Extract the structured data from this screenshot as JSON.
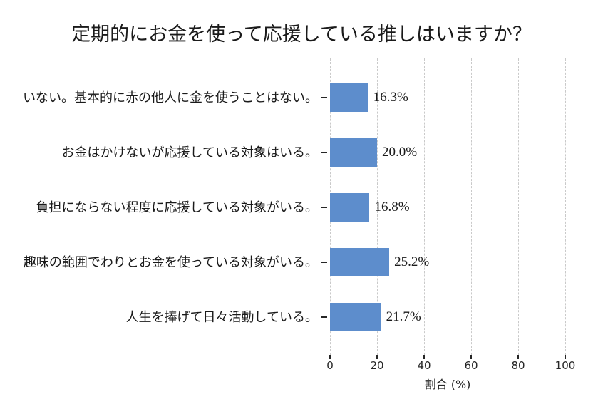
{
  "chart_data": {
    "type": "bar",
    "orientation": "horizontal",
    "title": "定期的にお金を使って応援している推しはいますか？",
    "categories": [
      "いない。基本的に赤の他人に金を使うことはない。",
      "お金はかけないが応援している対象はいる。",
      "負担にならない程度に応援している対象がいる。",
      "趣味の範囲でわりとお金を使っている対象がいる。",
      "人生を捧げて日々活動している。"
    ],
    "values": [
      16.3,
      20.0,
      16.8,
      25.2,
      21.7
    ],
    "value_labels": [
      "16.3%",
      "20.0%",
      "16.8%",
      "25.2%",
      "21.7%"
    ],
    "xlabel": "割合 (%)",
    "ylabel": "",
    "xlim": [
      0,
      100
    ],
    "xticks": [
      0,
      20,
      40,
      60,
      80,
      100
    ],
    "grid": "vertical-dashed",
    "legend": "none",
    "bar_color": "#5D8DCC",
    "grid_color": "#c9c9c9",
    "tick_color": "#262626",
    "text_color": "#1a1a1a",
    "background_color": "#ffffff"
  }
}
